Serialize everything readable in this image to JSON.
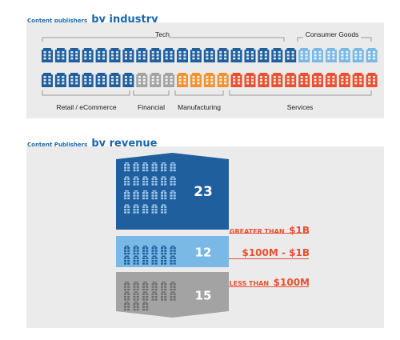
{
  "industry": {
    "title_small": "Content publishers",
    "title_big": "by industry"
  },
  "revenue": {
    "title_small": "Content Publishers",
    "title_big": "by revenue"
  },
  "colors": {
    "blue_dark": "#1f5f9e",
    "blue_light": "#7ab8e6",
    "gray": "#a3a3a3",
    "orange": "#f0922f",
    "red": "#e8502f",
    "title_blue": "#1b66ab"
  },
  "icon": "office-building-icon",
  "chart_data": [
    {
      "type": "bar",
      "title": "Content publishers by industry",
      "unit": "count of companies (one building icon each)",
      "rows": [
        {
          "row": 1,
          "groups": [
            {
              "name": "Tech",
              "value": 19,
              "color": "#1f5f9e"
            },
            {
              "name": "Consumer Goods",
              "value": 6,
              "color": "#7ab8e6"
            }
          ]
        },
        {
          "row": 2,
          "groups": [
            {
              "name": "Retail / eCommerce",
              "value": 7,
              "color": "#1f5f9e"
            },
            {
              "name": "Financial",
              "value": 3,
              "color": "#a3a3a3"
            },
            {
              "name": "Manufacturing",
              "value": 4,
              "color": "#f0922f"
            },
            {
              "name": "Services",
              "value": 11,
              "color": "#e8502f"
            }
          ]
        }
      ]
    },
    {
      "type": "bar",
      "title": "Content Publishers by revenue",
      "series": [
        {
          "name": "GREATER THAN $1B",
          "value": 23,
          "color": "#1f5f9e",
          "label_small": "GREATER THAN",
          "label_big": "$1B"
        },
        {
          "name": "$100M - $1B",
          "value": 12,
          "color": "#7ab8e6",
          "label_small": "",
          "label_big": "$100M - $1B"
        },
        {
          "name": "LESS THAN $100M",
          "value": 15,
          "color": "#a3a3a3",
          "label_small": "LESS THAN",
          "label_big": "$100M"
        }
      ]
    }
  ]
}
